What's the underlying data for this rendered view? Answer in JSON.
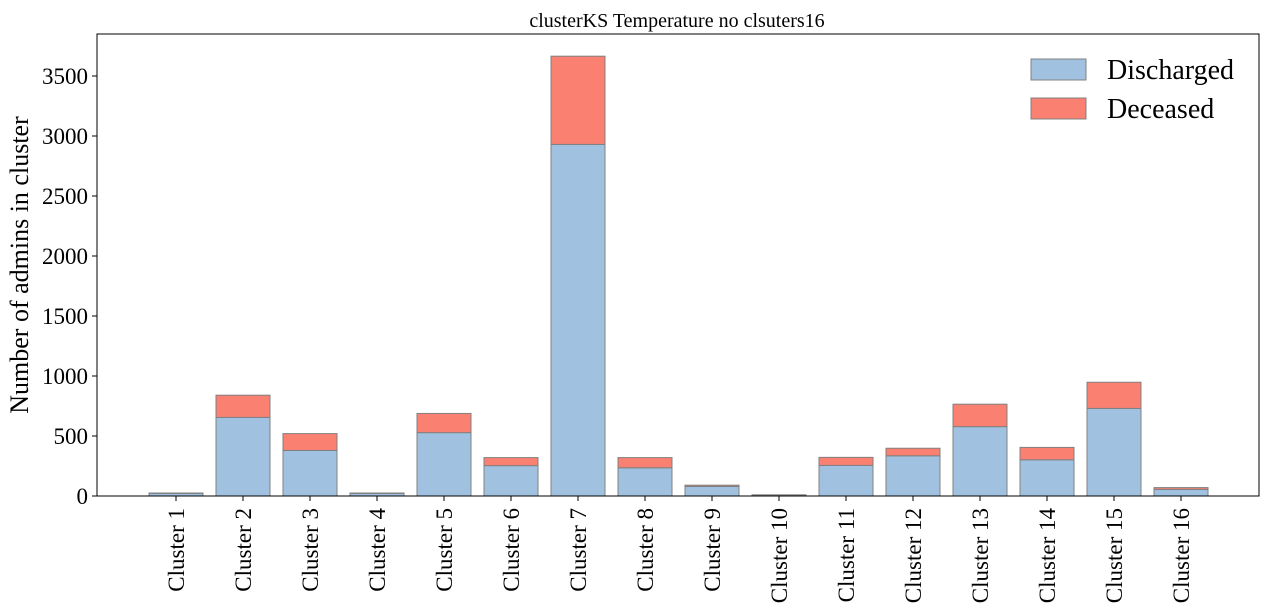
{
  "chart_data": {
    "type": "bar",
    "stacked": true,
    "title": "clusterKS Temperature no clsuters16",
    "xlabel": "",
    "ylabel": "Number of admins in cluster",
    "categories": [
      "Cluster 1",
      "Cluster 2",
      "Cluster 3",
      "Cluster 4",
      "Cluster 5",
      "Cluster 6",
      "Cluster 7",
      "Cluster 8",
      "Cluster 9",
      "Cluster 10",
      "Cluster 11",
      "Cluster 12",
      "Cluster 13",
      "Cluster 14",
      "Cluster 15",
      "Cluster 16"
    ],
    "series": [
      {
        "name": "Discharged",
        "color": "#a0c2e0",
        "values": [
          22,
          655,
          380,
          22,
          528,
          253,
          2930,
          235,
          80,
          8,
          255,
          335,
          578,
          302,
          730,
          55
        ]
      },
      {
        "name": "Deceased",
        "color": "#fa8072",
        "values": [
          3,
          185,
          140,
          3,
          160,
          67,
          735,
          85,
          10,
          2,
          67,
          63,
          187,
          103,
          218,
          15
        ]
      }
    ],
    "ylim": [
      0,
      3850
    ],
    "yticks": [
      0,
      500,
      1000,
      1500,
      2000,
      2500,
      3000,
      3500
    ],
    "grid": false,
    "legend_position": "top-right"
  }
}
